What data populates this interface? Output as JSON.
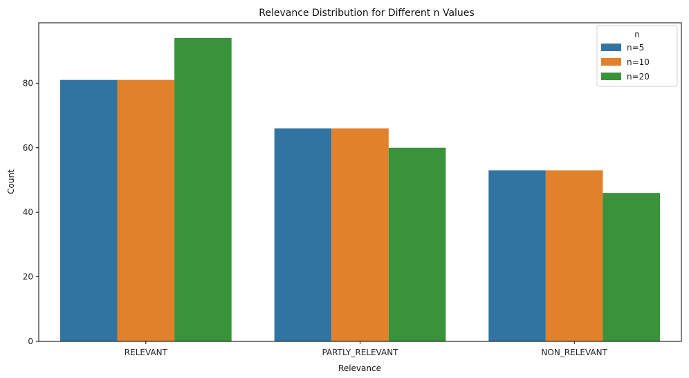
{
  "chart_data": {
    "type": "bar",
    "title": "Relevance Distribution for Different n Values",
    "xlabel": "Relevance",
    "ylabel": "Count",
    "categories": [
      "RELEVANT",
      "PARTLY_RELEVANT",
      "NON_RELEVANT"
    ],
    "series": [
      {
        "name": "n=5",
        "values": [
          81,
          66,
          53
        ],
        "color": "#3274a1"
      },
      {
        "name": "n=10",
        "values": [
          81,
          66,
          53
        ],
        "color": "#e1812c"
      },
      {
        "name": "n=20",
        "values": [
          94,
          60,
          46
        ],
        "color": "#3a923a"
      }
    ],
    "ylim": [
      0,
      98.7
    ],
    "yticks": [
      0,
      20,
      40,
      60,
      80
    ],
    "legend": {
      "title": "n",
      "placement": "top-right"
    },
    "grid": false
  }
}
